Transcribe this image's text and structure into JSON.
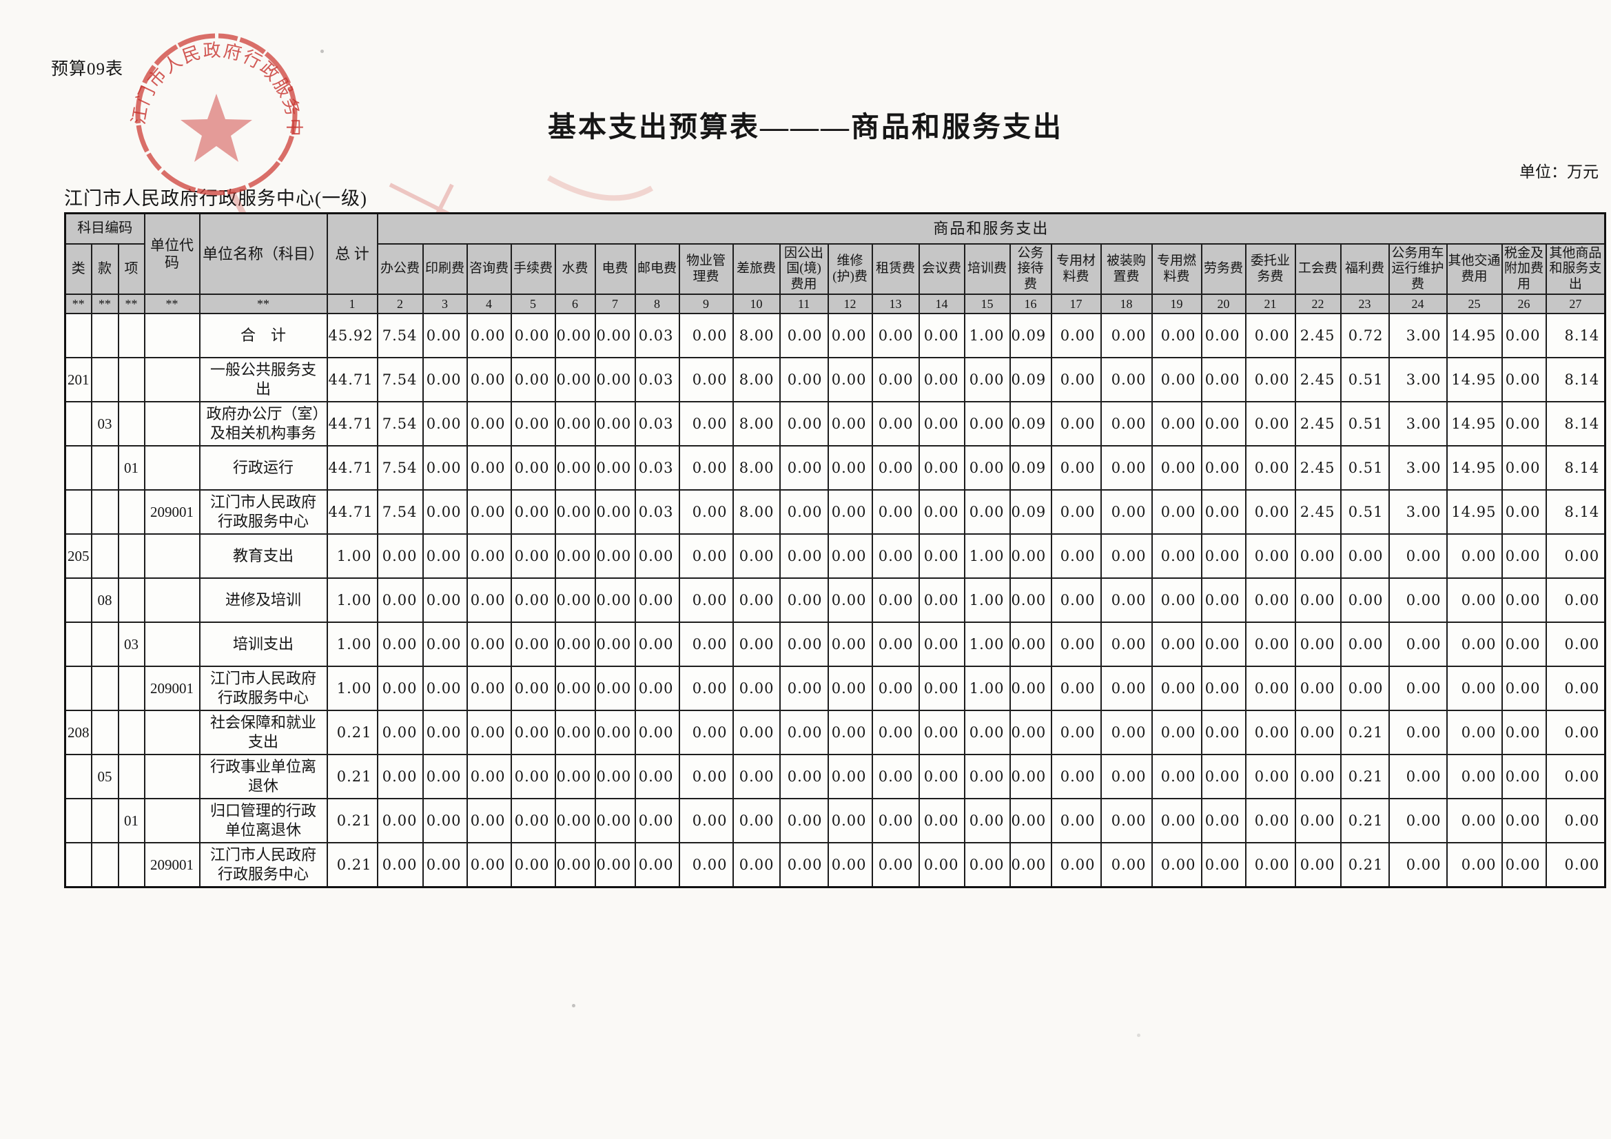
{
  "page": {
    "sheet_label": "预算09表",
    "title": "基本支出预算表———商品和服务支出",
    "org_name": "江门市人民政府行政服务中心(一级)",
    "unit_label": "单位：万元",
    "seal": {
      "text": "江门市人民政府行政服务中心",
      "color": "#cf4b45"
    }
  },
  "table": {
    "header": {
      "subject_code": "科目编码",
      "cls": "类",
      "sec": "款",
      "itm": "项",
      "unit_code": "单位代\n码",
      "unit_name": "单位名称（科目）",
      "total": "总  计",
      "group": "商品和服务支出",
      "fee_columns": [
        "办公费",
        "印刷费",
        "咨询费",
        "手续费",
        "水费",
        "电费",
        "邮电费",
        "物业管理费",
        "差旅费",
        "因公出国(境)费用",
        "维修(护)费",
        "租赁费",
        "会议费",
        "培训费",
        "公务接待费",
        "专用材料费",
        "被装购置费",
        "专用燃料费",
        "劳务费",
        "委托业务费",
        "工会费",
        "福利费",
        "公务用车运行维护费",
        "其他交通费用",
        "税金及附加费用",
        "其他商品和服务支出"
      ],
      "asterisks": [
        "**",
        "**",
        "**",
        "**",
        "**"
      ],
      "column_numbers": [
        "1",
        "2",
        "3",
        "4",
        "5",
        "6",
        "7",
        "8",
        "9",
        "10",
        "11",
        "12",
        "13",
        "14",
        "15",
        "16",
        "17",
        "18",
        "19",
        "20",
        "21",
        "22",
        "23",
        "24",
        "25",
        "26",
        "27"
      ]
    },
    "rows": [
      {
        "cls": "",
        "sec": "",
        "itm": "",
        "code": "",
        "name": "合　计",
        "values": [
          "45.92",
          "7.54",
          "0.00",
          "0.00",
          "0.00",
          "0.00",
          "0.00",
          "0.03",
          "0.00",
          "8.00",
          "0.00",
          "0.00",
          "0.00",
          "0.00",
          "1.00",
          "0.09",
          "0.00",
          "0.00",
          "0.00",
          "0.00",
          "0.00",
          "2.45",
          "0.72",
          "3.00",
          "14.95",
          "0.00",
          "8.14"
        ]
      },
      {
        "cls": "201",
        "sec": "",
        "itm": "",
        "code": "",
        "name": "一般公共服务支出",
        "values": [
          "44.71",
          "7.54",
          "0.00",
          "0.00",
          "0.00",
          "0.00",
          "0.00",
          "0.03",
          "0.00",
          "8.00",
          "0.00",
          "0.00",
          "0.00",
          "0.00",
          "0.00",
          "0.09",
          "0.00",
          "0.00",
          "0.00",
          "0.00",
          "0.00",
          "2.45",
          "0.51",
          "3.00",
          "14.95",
          "0.00",
          "8.14"
        ]
      },
      {
        "cls": "",
        "sec": "03",
        "itm": "",
        "code": "",
        "name": "政府办公厅（室）及相关机构事务",
        "values": [
          "44.71",
          "7.54",
          "0.00",
          "0.00",
          "0.00",
          "0.00",
          "0.00",
          "0.03",
          "0.00",
          "8.00",
          "0.00",
          "0.00",
          "0.00",
          "0.00",
          "0.00",
          "0.09",
          "0.00",
          "0.00",
          "0.00",
          "0.00",
          "0.00",
          "2.45",
          "0.51",
          "3.00",
          "14.95",
          "0.00",
          "8.14"
        ]
      },
      {
        "cls": "",
        "sec": "",
        "itm": "01",
        "code": "",
        "name": "行政运行",
        "values": [
          "44.71",
          "7.54",
          "0.00",
          "0.00",
          "0.00",
          "0.00",
          "0.00",
          "0.03",
          "0.00",
          "8.00",
          "0.00",
          "0.00",
          "0.00",
          "0.00",
          "0.00",
          "0.09",
          "0.00",
          "0.00",
          "0.00",
          "0.00",
          "0.00",
          "2.45",
          "0.51",
          "3.00",
          "14.95",
          "0.00",
          "8.14"
        ]
      },
      {
        "cls": "",
        "sec": "",
        "itm": "",
        "code": "209001",
        "name": "江门市人民政府行政服务中心",
        "values": [
          "44.71",
          "7.54",
          "0.00",
          "0.00",
          "0.00",
          "0.00",
          "0.00",
          "0.03",
          "0.00",
          "8.00",
          "0.00",
          "0.00",
          "0.00",
          "0.00",
          "0.00",
          "0.09",
          "0.00",
          "0.00",
          "0.00",
          "0.00",
          "0.00",
          "2.45",
          "0.51",
          "3.00",
          "14.95",
          "0.00",
          "8.14"
        ]
      },
      {
        "cls": "205",
        "sec": "",
        "itm": "",
        "code": "",
        "name": "教育支出",
        "values": [
          "1.00",
          "0.00",
          "0.00",
          "0.00",
          "0.00",
          "0.00",
          "0.00",
          "0.00",
          "0.00",
          "0.00",
          "0.00",
          "0.00",
          "0.00",
          "0.00",
          "1.00",
          "0.00",
          "0.00",
          "0.00",
          "0.00",
          "0.00",
          "0.00",
          "0.00",
          "0.00",
          "0.00",
          "0.00",
          "0.00",
          "0.00"
        ]
      },
      {
        "cls": "",
        "sec": "08",
        "itm": "",
        "code": "",
        "name": "进修及培训",
        "values": [
          "1.00",
          "0.00",
          "0.00",
          "0.00",
          "0.00",
          "0.00",
          "0.00",
          "0.00",
          "0.00",
          "0.00",
          "0.00",
          "0.00",
          "0.00",
          "0.00",
          "1.00",
          "0.00",
          "0.00",
          "0.00",
          "0.00",
          "0.00",
          "0.00",
          "0.00",
          "0.00",
          "0.00",
          "0.00",
          "0.00",
          "0.00"
        ]
      },
      {
        "cls": "",
        "sec": "",
        "itm": "03",
        "code": "",
        "name": "培训支出",
        "values": [
          "1.00",
          "0.00",
          "0.00",
          "0.00",
          "0.00",
          "0.00",
          "0.00",
          "0.00",
          "0.00",
          "0.00",
          "0.00",
          "0.00",
          "0.00",
          "0.00",
          "1.00",
          "0.00",
          "0.00",
          "0.00",
          "0.00",
          "0.00",
          "0.00",
          "0.00",
          "0.00",
          "0.00",
          "0.00",
          "0.00",
          "0.00"
        ]
      },
      {
        "cls": "",
        "sec": "",
        "itm": "",
        "code": "209001",
        "name": "江门市人民政府行政服务中心",
        "values": [
          "1.00",
          "0.00",
          "0.00",
          "0.00",
          "0.00",
          "0.00",
          "0.00",
          "0.00",
          "0.00",
          "0.00",
          "0.00",
          "0.00",
          "0.00",
          "0.00",
          "1.00",
          "0.00",
          "0.00",
          "0.00",
          "0.00",
          "0.00",
          "0.00",
          "0.00",
          "0.00",
          "0.00",
          "0.00",
          "0.00",
          "0.00"
        ]
      },
      {
        "cls": "208",
        "sec": "",
        "itm": "",
        "code": "",
        "name": "社会保障和就业支出",
        "values": [
          "0.21",
          "0.00",
          "0.00",
          "0.00",
          "0.00",
          "0.00",
          "0.00",
          "0.00",
          "0.00",
          "0.00",
          "0.00",
          "0.00",
          "0.00",
          "0.00",
          "0.00",
          "0.00",
          "0.00",
          "0.00",
          "0.00",
          "0.00",
          "0.00",
          "0.00",
          "0.21",
          "0.00",
          "0.00",
          "0.00",
          "0.00"
        ]
      },
      {
        "cls": "",
        "sec": "05",
        "itm": "",
        "code": "",
        "name": "行政事业单位离退休",
        "values": [
          "0.21",
          "0.00",
          "0.00",
          "0.00",
          "0.00",
          "0.00",
          "0.00",
          "0.00",
          "0.00",
          "0.00",
          "0.00",
          "0.00",
          "0.00",
          "0.00",
          "0.00",
          "0.00",
          "0.00",
          "0.00",
          "0.00",
          "0.00",
          "0.00",
          "0.00",
          "0.21",
          "0.00",
          "0.00",
          "0.00",
          "0.00"
        ]
      },
      {
        "cls": "",
        "sec": "",
        "itm": "01",
        "code": "",
        "name": "归口管理的行政单位离退休",
        "values": [
          "0.21",
          "0.00",
          "0.00",
          "0.00",
          "0.00",
          "0.00",
          "0.00",
          "0.00",
          "0.00",
          "0.00",
          "0.00",
          "0.00",
          "0.00",
          "0.00",
          "0.00",
          "0.00",
          "0.00",
          "0.00",
          "0.00",
          "0.00",
          "0.00",
          "0.00",
          "0.21",
          "0.00",
          "0.00",
          "0.00",
          "0.00"
        ]
      },
      {
        "cls": "",
        "sec": "",
        "itm": "",
        "code": "209001",
        "name": "江门市人民政府行政服务中心",
        "values": [
          "0.21",
          "0.00",
          "0.00",
          "0.00",
          "0.00",
          "0.00",
          "0.00",
          "0.00",
          "0.00",
          "0.00",
          "0.00",
          "0.00",
          "0.00",
          "0.00",
          "0.00",
          "0.00",
          "0.00",
          "0.00",
          "0.00",
          "0.00",
          "0.00",
          "0.00",
          "0.21",
          "0.00",
          "0.00",
          "0.00",
          "0.00"
        ]
      }
    ]
  }
}
